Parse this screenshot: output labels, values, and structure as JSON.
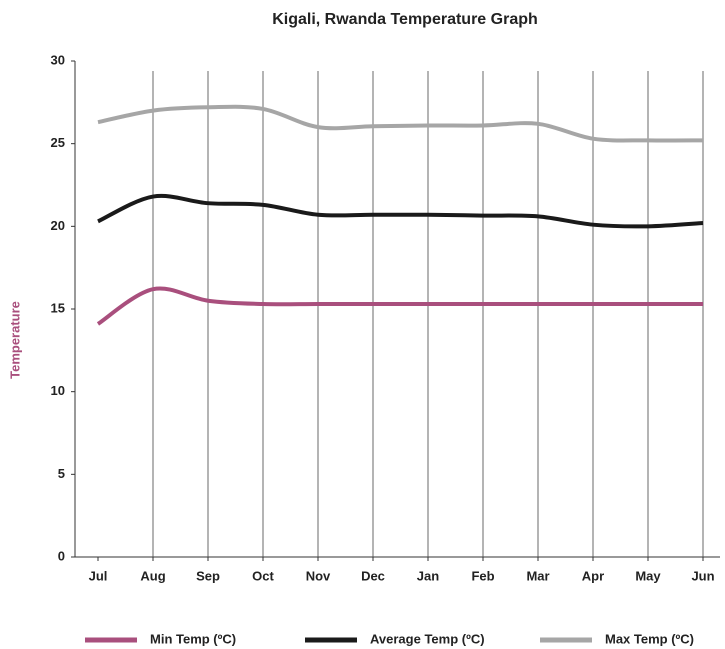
{
  "chart_data": {
    "type": "line",
    "title": "Kigali, Rwanda Temperature Graph",
    "y_label": "Temperature",
    "categories": [
      "Jul",
      "Aug",
      "Sep",
      "Oct",
      "Nov",
      "Dec",
      "Jan",
      "Feb",
      "Mar",
      "Apr",
      "May",
      "Jun"
    ],
    "series": [
      {
        "name": "Min Temp (ºC)",
        "color": "#a94f7d",
        "values": [
          14.1,
          16.2,
          15.5,
          15.3,
          15.3,
          15.3,
          15.3,
          15.3,
          15.3,
          15.3,
          15.3,
          15.3
        ]
      },
      {
        "name": "Average Temp (ºC)",
        "color": "#1a1a1a",
        "values": [
          20.3,
          21.8,
          21.4,
          21.3,
          20.7,
          20.7,
          20.7,
          20.65,
          20.6,
          20.1,
          20.0,
          20.2
        ]
      },
      {
        "name": "Max Temp (ºC)",
        "color": "#a6a6a6",
        "values": [
          26.3,
          27.0,
          27.2,
          27.1,
          26.0,
          26.05,
          26.1,
          26.1,
          26.2,
          25.3,
          25.2,
          25.2
        ]
      }
    ],
    "ylim": [
      0,
      30
    ],
    "yticks": [
      0,
      5,
      10,
      15,
      20,
      25,
      30
    ],
    "grid": true,
    "legend": "bottom"
  }
}
